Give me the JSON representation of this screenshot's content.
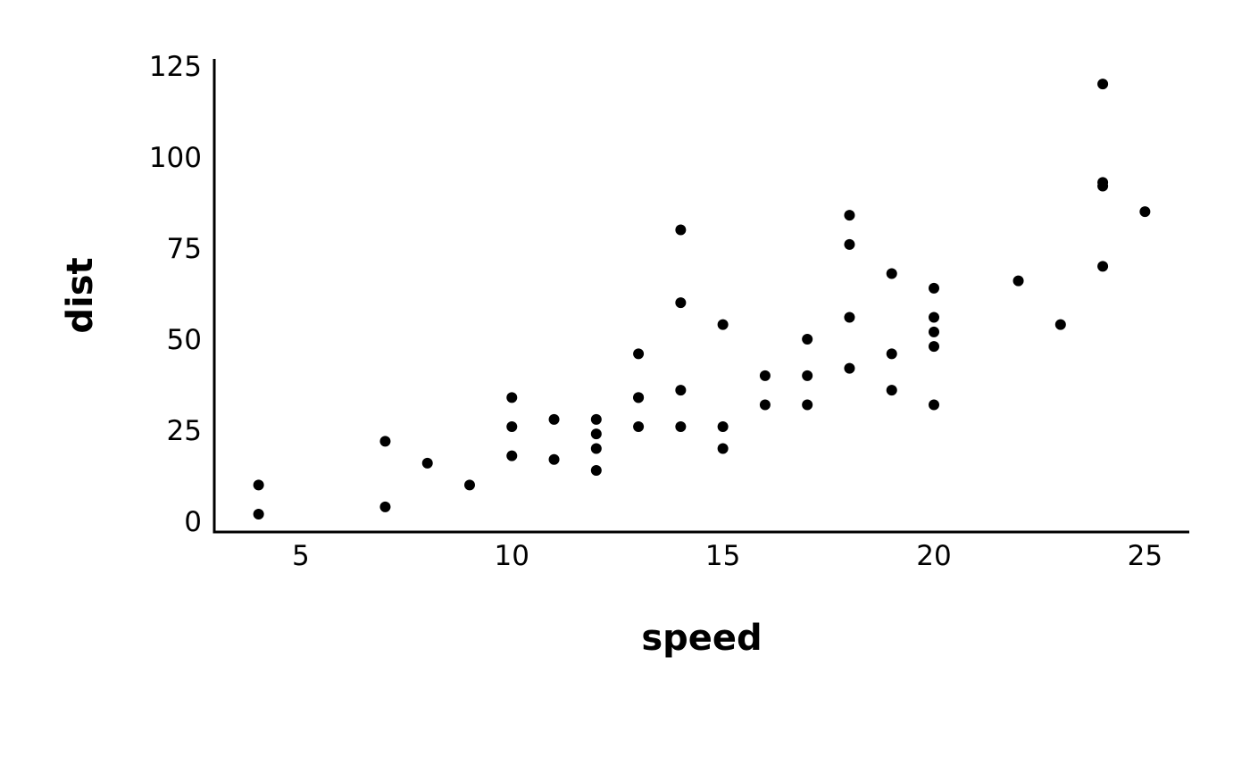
{
  "chart_data": {
    "type": "scatter",
    "xlabel": "speed",
    "ylabel": "dist",
    "xlim": [
      2.95,
      26.05
    ],
    "ylim": [
      -2.9,
      126.9
    ],
    "xticks": [
      5,
      10,
      15,
      20,
      25
    ],
    "yticks": [
      0,
      25,
      50,
      75,
      100,
      125
    ],
    "grid": false,
    "point_color": "#000000",
    "points": [
      {
        "x": 4,
        "y": 2
      },
      {
        "x": 4,
        "y": 10
      },
      {
        "x": 7,
        "y": 4
      },
      {
        "x": 7,
        "y": 22
      },
      {
        "x": 8,
        "y": 16
      },
      {
        "x": 9,
        "y": 10
      },
      {
        "x": 10,
        "y": 18
      },
      {
        "x": 10,
        "y": 26
      },
      {
        "x": 10,
        "y": 34
      },
      {
        "x": 11,
        "y": 17
      },
      {
        "x": 11,
        "y": 28
      },
      {
        "x": 12,
        "y": 14
      },
      {
        "x": 12,
        "y": 20
      },
      {
        "x": 12,
        "y": 24
      },
      {
        "x": 12,
        "y": 28
      },
      {
        "x": 13,
        "y": 26
      },
      {
        "x": 13,
        "y": 34
      },
      {
        "x": 13,
        "y": 34
      },
      {
        "x": 13,
        "y": 46
      },
      {
        "x": 14,
        "y": 26
      },
      {
        "x": 14,
        "y": 36
      },
      {
        "x": 14,
        "y": 60
      },
      {
        "x": 14,
        "y": 80
      },
      {
        "x": 15,
        "y": 20
      },
      {
        "x": 15,
        "y": 26
      },
      {
        "x": 15,
        "y": 54
      },
      {
        "x": 16,
        "y": 32
      },
      {
        "x": 16,
        "y": 40
      },
      {
        "x": 17,
        "y": 32
      },
      {
        "x": 17,
        "y": 40
      },
      {
        "x": 17,
        "y": 50
      },
      {
        "x": 18,
        "y": 42
      },
      {
        "x": 18,
        "y": 56
      },
      {
        "x": 18,
        "y": 76
      },
      {
        "x": 18,
        "y": 84
      },
      {
        "x": 19,
        "y": 36
      },
      {
        "x": 19,
        "y": 46
      },
      {
        "x": 19,
        "y": 68
      },
      {
        "x": 20,
        "y": 32
      },
      {
        "x": 20,
        "y": 48
      },
      {
        "x": 20,
        "y": 52
      },
      {
        "x": 20,
        "y": 56
      },
      {
        "x": 20,
        "y": 64
      },
      {
        "x": 22,
        "y": 66
      },
      {
        "x": 23,
        "y": 54
      },
      {
        "x": 24,
        "y": 70
      },
      {
        "x": 24,
        "y": 92
      },
      {
        "x": 24,
        "y": 93
      },
      {
        "x": 24,
        "y": 120
      },
      {
        "x": 25,
        "y": 85
      }
    ]
  }
}
